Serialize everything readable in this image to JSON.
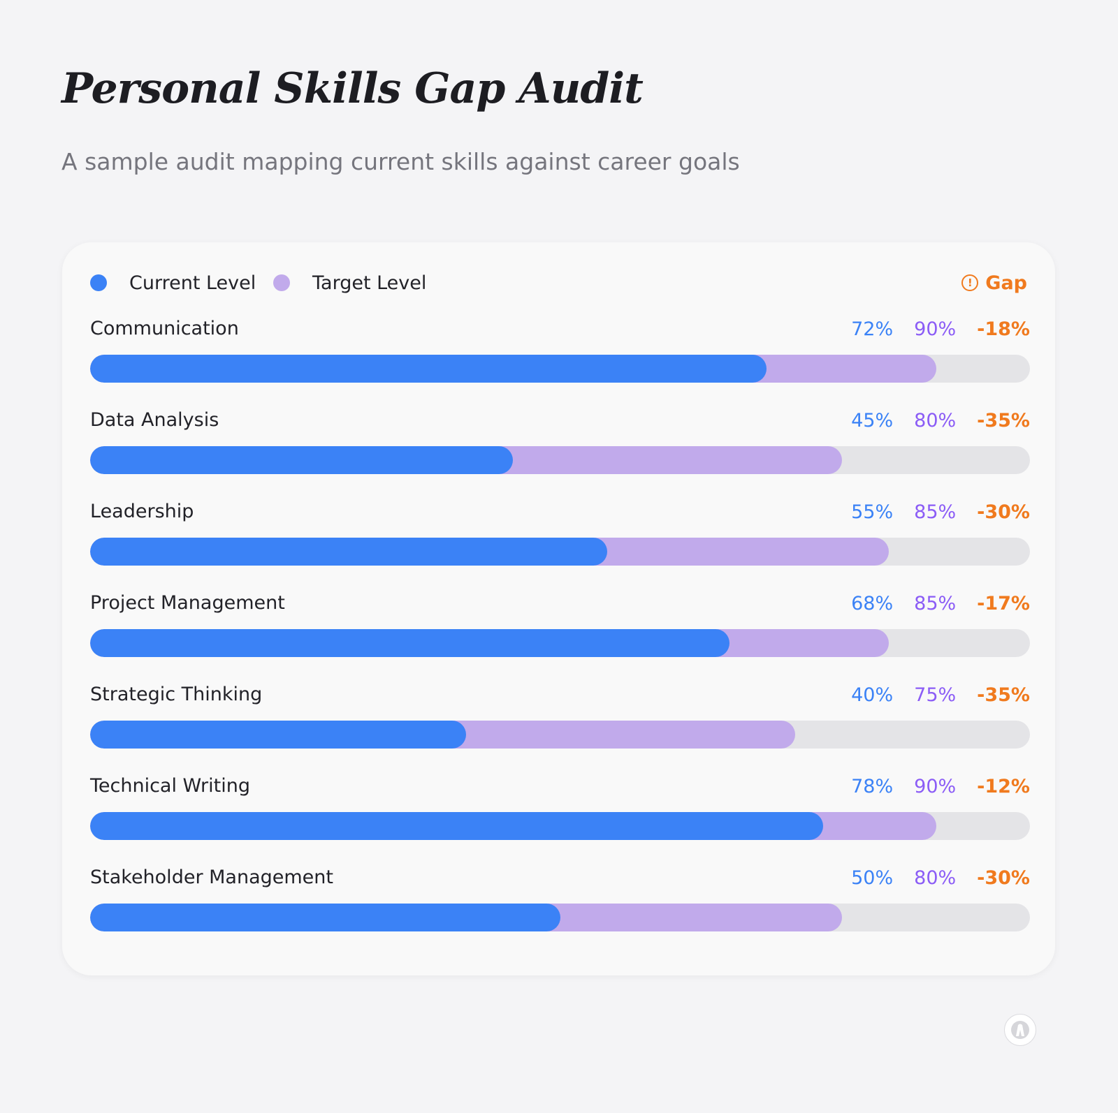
{
  "header": {
    "title": "Personal Skills Gap Audit",
    "subtitle": "A sample audit mapping current skills against career goals"
  },
  "legend": {
    "current_label": "Current Level",
    "target_label": "Target Level",
    "gap_label": "Gap",
    "gap_icon": "alert-circle-icon"
  },
  "colors": {
    "current": "#3b82f6",
    "target": "#c1aaeb",
    "target_text": "#8b5cf6",
    "gap": "#f07a1e",
    "track": "#e4e4e7"
  },
  "chart_data": {
    "type": "bar",
    "orientation": "horizontal",
    "title": "Personal Skills Gap Audit",
    "subtitle": "A sample audit mapping current skills against career goals",
    "xlim": [
      0,
      100
    ],
    "categories": [
      "Communication",
      "Data Analysis",
      "Leadership",
      "Project Management",
      "Strategic Thinking",
      "Technical Writing",
      "Stakeholder Management"
    ],
    "series": [
      {
        "name": "Current Level",
        "values": [
          72,
          45,
          55,
          68,
          40,
          78,
          50
        ]
      },
      {
        "name": "Target Level",
        "values": [
          90,
          80,
          85,
          85,
          75,
          90,
          80
        ]
      },
      {
        "name": "Gap",
        "values": [
          -18,
          -35,
          -30,
          -17,
          -35,
          -12,
          -30
        ]
      }
    ],
    "rows": [
      {
        "name": "Communication",
        "current": 72,
        "target": 90,
        "current_label": "72%",
        "target_label": "90%",
        "gap_label": "-18%"
      },
      {
        "name": "Data Analysis",
        "current": 45,
        "target": 80,
        "current_label": "45%",
        "target_label": "80%",
        "gap_label": "-35%"
      },
      {
        "name": "Leadership",
        "current": 55,
        "target": 85,
        "current_label": "55%",
        "target_label": "85%",
        "gap_label": "-30%"
      },
      {
        "name": "Project Management",
        "current": 68,
        "target": 85,
        "current_label": "68%",
        "target_label": "85%",
        "gap_label": "-17%"
      },
      {
        "name": "Strategic Thinking",
        "current": 40,
        "target": 75,
        "current_label": "40%",
        "target_label": "75%",
        "gap_label": "-35%"
      },
      {
        "name": "Technical Writing",
        "current": 78,
        "target": 90,
        "current_label": "78%",
        "target_label": "90%",
        "gap_label": "-12%"
      },
      {
        "name": "Stakeholder Management",
        "current": 50,
        "target": 80,
        "current_label": "50%",
        "target_label": "80%",
        "gap_label": "-30%"
      }
    ],
    "legend_position": "top",
    "grid": false
  },
  "footer": {
    "logo_icon": "brand-logo-icon"
  }
}
